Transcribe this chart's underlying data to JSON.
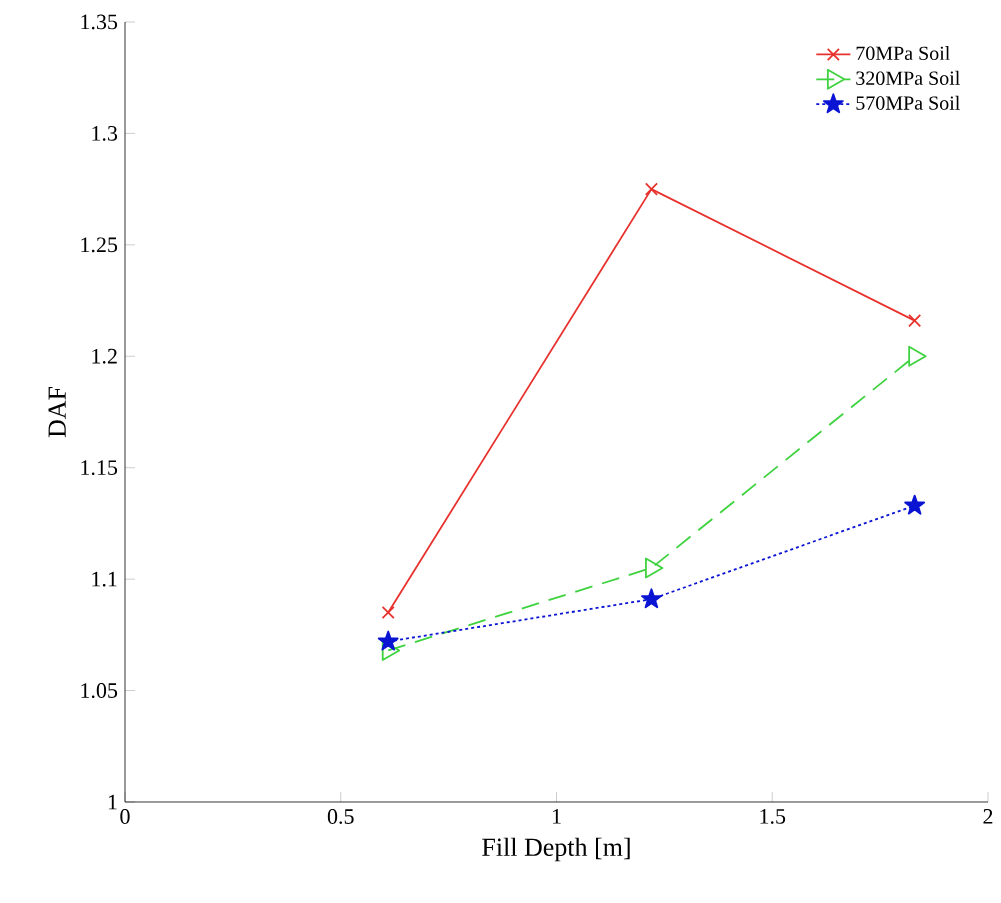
{
  "chart_data": {
    "type": "line",
    "xlabel": "Fill Depth [m]",
    "ylabel": "DAF",
    "xlim": [
      0,
      2
    ],
    "ylim": [
      1,
      1.35
    ],
    "xticks": [
      0,
      0.5,
      1,
      1.5,
      2
    ],
    "yticks": [
      1,
      1.05,
      1.1,
      1.15,
      1.2,
      1.25,
      1.3,
      1.35
    ],
    "legend": "top right",
    "grid": false,
    "x": [
      0.61,
      1.22,
      1.83
    ],
    "series": [
      {
        "name": "70MPa Soil",
        "color": "#e8322d",
        "values": [
          1.085,
          1.275,
          1.216
        ],
        "marker": "cross",
        "line_style": "solid"
      },
      {
        "name": "320MPa Soil",
        "color": "#3fd23f",
        "values": [
          1.068,
          1.105,
          1.2
        ],
        "marker": "triangle",
        "line_style": "dashed"
      },
      {
        "name": "570MPa Soil",
        "color": "#0a14d2",
        "values": [
          1.072,
          1.091,
          1.133
        ],
        "marker": "star",
        "line_style": "dotted"
      }
    ]
  }
}
